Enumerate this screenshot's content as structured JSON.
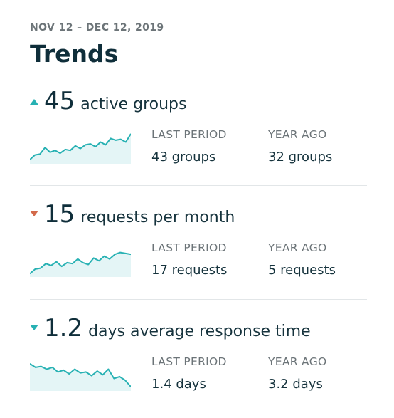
{
  "date_range": "NOV 12 – DEC 12, 2019",
  "title": "Trends",
  "colors": {
    "teal": "#27b1b3",
    "red": "#d36a4b",
    "fill": "#e4f5f6"
  },
  "metrics": [
    {
      "direction": "up",
      "arrow_icon": "triangle-up-icon",
      "value": "45",
      "label": "active groups",
      "last_period_label": "LAST PERIOD",
      "last_period_value": "43 groups",
      "year_ago_label": "YEAR AGO",
      "year_ago_value": "32 groups",
      "sparkline": [
        3,
        8,
        9,
        16,
        11,
        13,
        10,
        14,
        13,
        18,
        15,
        19,
        20,
        17,
        22,
        19,
        26,
        24,
        25,
        22,
        31
      ]
    },
    {
      "direction": "down",
      "arrow_icon": "triangle-down-icon",
      "value": "15",
      "label": "requests per month",
      "last_period_label": "LAST PERIOD",
      "last_period_value": "17 requests",
      "year_ago_label": "YEAR AGO",
      "year_ago_value": "5 requests",
      "sparkline": [
        2,
        7,
        8,
        13,
        11,
        15,
        10,
        14,
        13,
        18,
        14,
        12,
        19,
        16,
        21,
        18,
        23,
        25,
        24,
        23
      ]
    },
    {
      "direction": "down",
      "arrow_icon": "triangle-down-icon",
      "value": "1.2",
      "label": "days average response time",
      "last_period_label": "LAST PERIOD",
      "last_period_value": "1.4 days",
      "year_ago_label": "YEAR AGO",
      "year_ago_value": "3.2 days",
      "sparkline": [
        28,
        24,
        25,
        22,
        24,
        19,
        21,
        17,
        22,
        18,
        19,
        15,
        20,
        16,
        22,
        12,
        14,
        10,
        3
      ]
    }
  ]
}
